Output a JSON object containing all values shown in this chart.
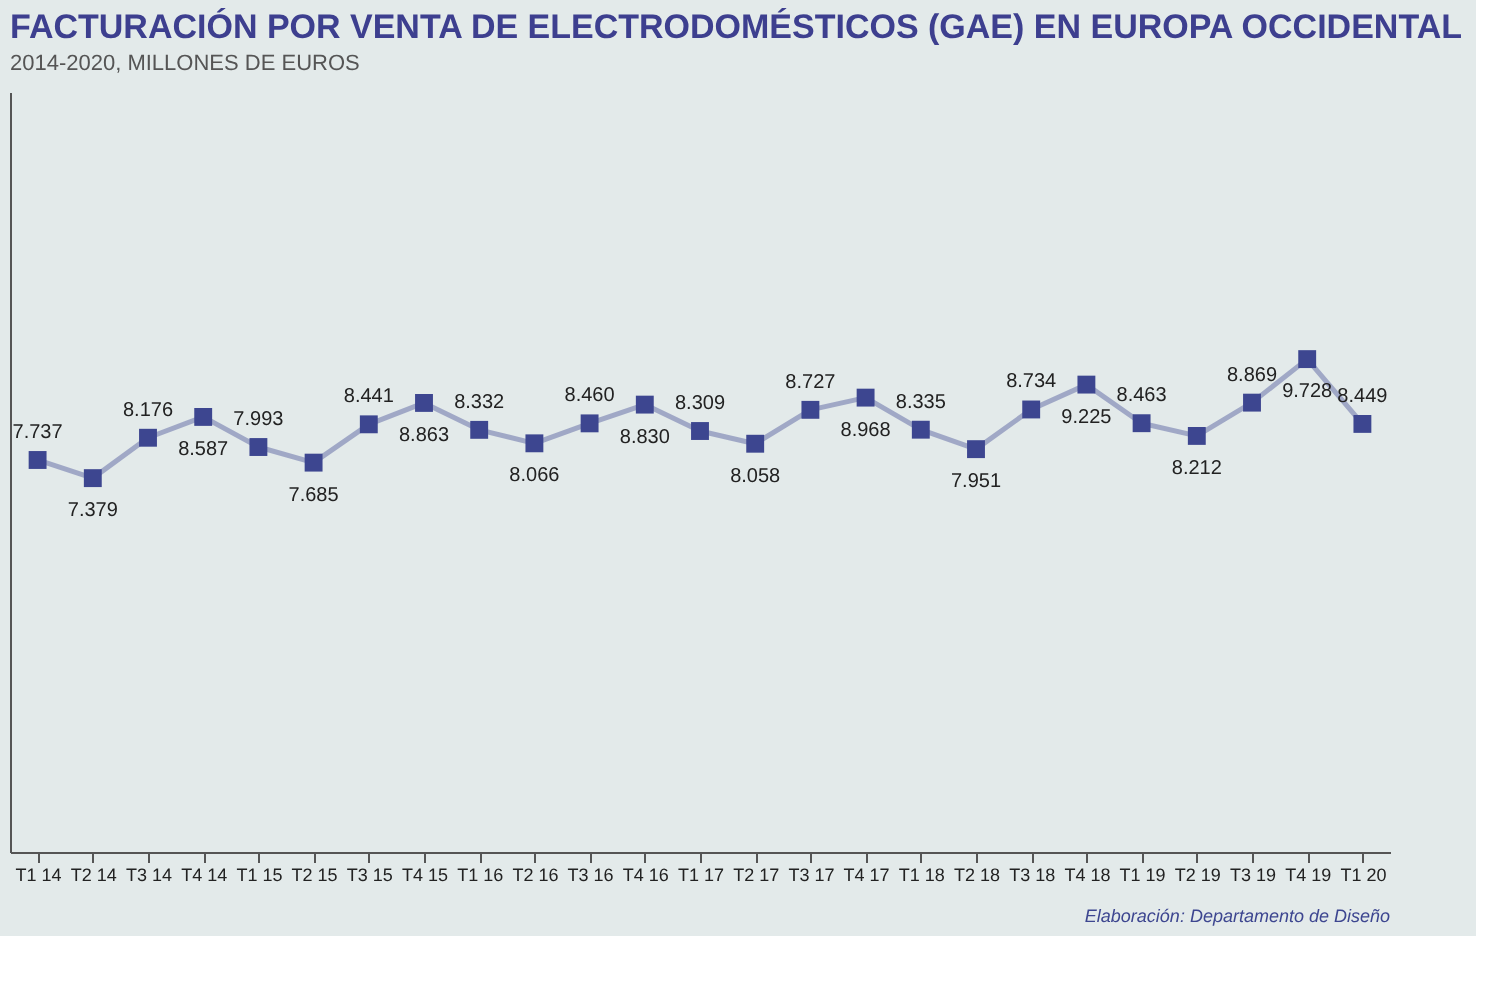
{
  "chart_data": {
    "type": "line",
    "title": "FACTURACIÓN POR VENTA DE ELECTRODOMÉSTICOS (GAE) EN EUROPA OCCIDENTAL",
    "subtitle": "2014-2020, MILLONES DE EUROS",
    "categories": [
      "T1 14",
      "T2 14",
      "T3 14",
      "T4 14",
      "T1 15",
      "T2 15",
      "T3 15",
      "T4 15",
      "T1 16",
      "T2 16",
      "T3 16",
      "T4 16",
      "T1 17",
      "T2 17",
      "T3 17",
      "T4 17",
      "T1 18",
      "T2 18",
      "T3 18",
      "T4 18",
      "T1 19",
      "T2 19",
      "T3 19",
      "T4 19",
      "T1 20"
    ],
    "series": [
      {
        "color": "#3d4690",
        "values": [
          7.737,
          7.379,
          8.176,
          8.587,
          7.993,
          7.685,
          8.441,
          8.863,
          8.332,
          8.066,
          8.46,
          8.83,
          8.309,
          8.058,
          8.727,
          8.968,
          8.335,
          7.951,
          8.734,
          9.225,
          8.463,
          8.212,
          8.869,
          9.728,
          8.449
        ],
        "value_labels": [
          "7.737",
          "7.379",
          "8.176",
          "8.587",
          "7.993",
          "7.685",
          "8.441",
          "8.863",
          "8.332",
          "8.066",
          "8.460",
          "8.830",
          "8.309",
          "8.058",
          "8.727",
          "8.968",
          "8.335",
          "7.951",
          "8.734",
          "9.225",
          "8.463",
          "8.212",
          "8.869",
          "9.728",
          "8.449"
        ]
      }
    ],
    "ylim": [
      0,
      15
    ],
    "tick_labels": "x",
    "grid": false,
    "marker": "square",
    "line_style": "solid",
    "annotations": [
      "Elaboración: Departamento de Diseño"
    ]
  }
}
